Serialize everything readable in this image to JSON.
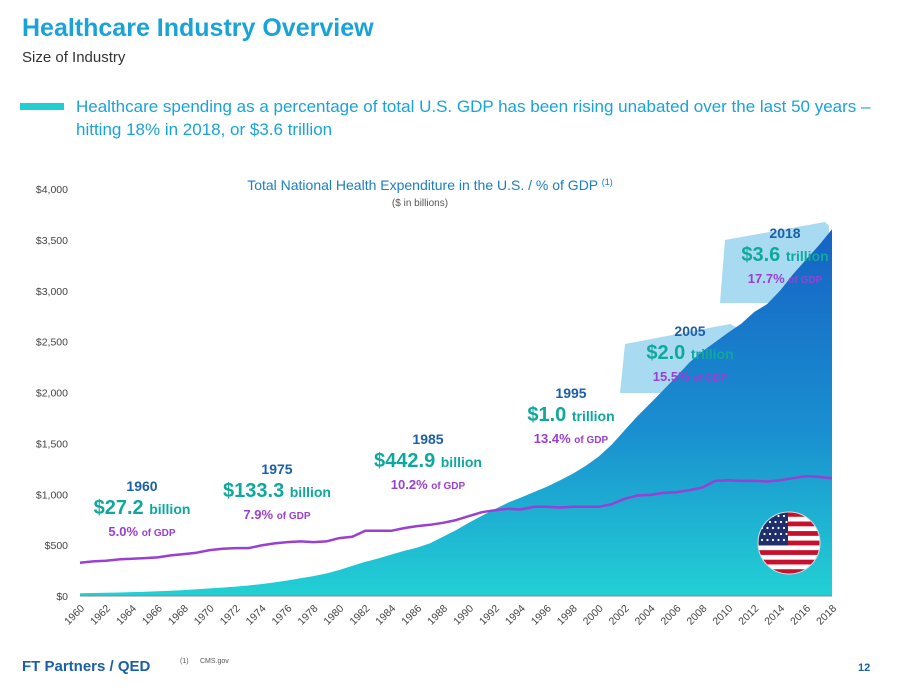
{
  "header": {
    "title": "Healthcare Industry Overview",
    "subtitle": "Size of Industry"
  },
  "bullet": {
    "text": "Healthcare spending as a percentage of total U.S. GDP has been rising unabated over the last 50 years – hitting 18% in 2018, or $3.6 trillion"
  },
  "chart_data": {
    "type": "area",
    "title": "Total National Health Expenditure in the U.S. / % of GDP",
    "title_footnote": "(1)",
    "subtitle": "($ in billions)",
    "y_ticks": [
      "$0",
      "$500",
      "$1,000",
      "$1,500",
      "$2,000",
      "$2,500",
      "$3,000",
      "$3,500",
      "$4,000"
    ],
    "ylim": [
      0,
      4000
    ],
    "x_ticks": [
      "1960",
      "1962",
      "1964",
      "1966",
      "1968",
      "1970",
      "1972",
      "1974",
      "1976",
      "1978",
      "1980",
      "1982",
      "1984",
      "1986",
      "1988",
      "1990",
      "1992",
      "1994",
      "1996",
      "1998",
      "2000",
      "2002",
      "2004",
      "2006",
      "2008",
      "2010",
      "2012",
      "2014",
      "2016",
      "2018"
    ],
    "x": [
      1960,
      1961,
      1962,
      1963,
      1964,
      1965,
      1966,
      1967,
      1968,
      1969,
      1970,
      1971,
      1972,
      1973,
      1974,
      1975,
      1976,
      1977,
      1978,
      1979,
      1980,
      1981,
      1982,
      1983,
      1984,
      1985,
      1986,
      1987,
      1988,
      1989,
      1990,
      1991,
      1992,
      1993,
      1994,
      1995,
      1996,
      1997,
      1998,
      1999,
      2000,
      2001,
      2002,
      2003,
      2004,
      2005,
      2006,
      2007,
      2008,
      2009,
      2010,
      2011,
      2012,
      2013,
      2014,
      2015,
      2016,
      2017,
      2018
    ],
    "series": [
      {
        "kind": "area",
        "values": [
          27.2,
          29.1,
          31.8,
          34.6,
          38.4,
          41.9,
          46.1,
          51.6,
          58.4,
          65.9,
          74.6,
          82.7,
          92.7,
          102.8,
          116.5,
          133.3,
          152.7,
          173.9,
          195.3,
          221.5,
          255.3,
          296.2,
          334.7,
          368.5,
          406.5,
          442.9,
          475.8,
          519.1,
          581.5,
          647.5,
          721.4,
          788.1,
          854.1,
          916.6,
          967.2,
          1021.6,
          1074.4,
          1135.4,
          1202.3,
          1278.2,
          1369.7,
          1486.8,
          1629.2,
          1768.2,
          1896.3,
          2024.2,
          2156.9,
          2295.3,
          2403.9,
          2496.4,
          2589.6,
          2675.5,
          2791.6,
          2869.9,
          3001.1,
          3163.3,
          3307.3,
          3446.5,
          3604.5
        ]
      },
      {
        "kind": "line",
        "axis": "gdp_percent",
        "values": [
          5.0,
          5.2,
          5.3,
          5.5,
          5.6,
          5.7,
          5.8,
          6.1,
          6.3,
          6.5,
          6.9,
          7.1,
          7.2,
          7.2,
          7.6,
          7.9,
          8.1,
          8.2,
          8.1,
          8.2,
          8.7,
          8.9,
          9.8,
          9.8,
          9.8,
          10.2,
          10.5,
          10.7,
          11.0,
          11.4,
          12.0,
          12.6,
          12.9,
          13.1,
          13.0,
          13.4,
          13.4,
          13.3,
          13.4,
          13.4,
          13.4,
          13.8,
          14.6,
          15.1,
          15.2,
          15.5,
          15.6,
          15.9,
          16.3,
          17.3,
          17.4,
          17.3,
          17.3,
          17.2,
          17.4,
          17.7,
          18.0,
          17.9,
          17.7
        ]
      }
    ],
    "annotations": [
      {
        "year": "1960",
        "amount": "$27.2",
        "amount_unit": "billion",
        "pct": "5.0%",
        "pct_unit": "of GDP"
      },
      {
        "year": "1975",
        "amount": "$133.3",
        "amount_unit": "billion",
        "pct": "7.9%",
        "pct_unit": "of GDP"
      },
      {
        "year": "1985",
        "amount": "$442.9",
        "amount_unit": "billion",
        "pct": "10.2%",
        "pct_unit": "of GDP"
      },
      {
        "year": "1995",
        "amount": "$1.0",
        "amount_unit": "trillion",
        "pct": "13.4%",
        "pct_unit": "of GDP"
      },
      {
        "year": "2005",
        "amount": "$2.0",
        "amount_unit": "trillion",
        "pct": "15.5%",
        "pct_unit": "of GDP"
      },
      {
        "year": "2018",
        "amount": "$3.6",
        "amount_unit": "trillion",
        "pct": "17.7%",
        "pct_unit": "of GDP"
      }
    ],
    "colors": {
      "area_top": "#1563c4",
      "area_bottom": "#22d0d4",
      "line": "#9a3fd4",
      "highlight": "#a8daf2",
      "axis_text": "#444444"
    },
    "grid": false
  },
  "flag": {
    "icon": "us-flag-icon"
  },
  "footer": {
    "brand": "FT Partners / QED",
    "footnote_marker": "(1)",
    "footnote_text": "CMS.gov",
    "page_number": "12"
  }
}
